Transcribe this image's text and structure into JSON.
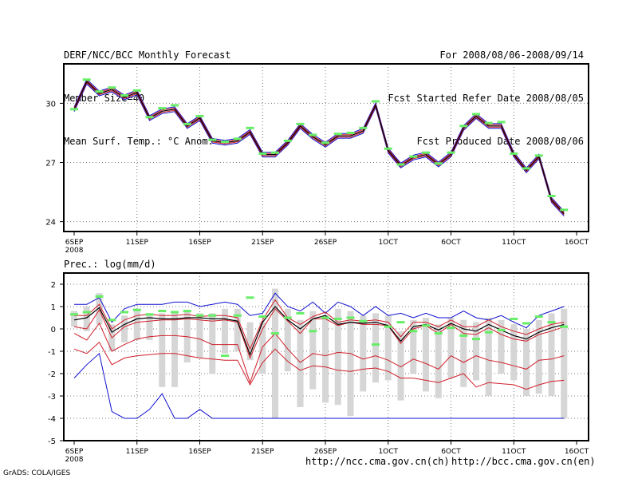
{
  "header": {
    "left": [
      "DERF/NCC/BCC Monthly Forecast",
      "Member Size=40",
      "Mean Surf. Temp.: °C Anom."
    ],
    "right": [
      "For 2008/08/06-2008/09/14",
      "Fcst Started Refer Date 2008/08/05",
      "Fcst Produced Date 2008/08/06"
    ]
  },
  "footer": {
    "url_ncc": "http://ncc.cma.gov.cn(ch)",
    "url_bcc": "http://bcc.cma.gov.cn(en)",
    "credit": "GrADS: COLA/IGES"
  },
  "colors": {
    "ensemble_mean": "#000000",
    "spread_red": "#d0202c",
    "range_blue": "#1010d0",
    "member_marker": "#66ee66",
    "box_fill": "#d6d6d6"
  },
  "chart_data": [
    {
      "type": "line",
      "title": "Mean Surf. Temp.: °C Anom.",
      "x_tick_labels": [
        "6SEP",
        "11SEP",
        "16SEP",
        "21SEP",
        "26SEP",
        "1OCT",
        "6OCT",
        "11OCT",
        "16OCT"
      ],
      "x_tick_sublabel": "2008",
      "x_day_range": [
        0,
        40
      ],
      "ylim": [
        23.5,
        32
      ],
      "y_ticks": [
        24,
        27,
        30
      ],
      "series": [
        {
          "name": "mean",
          "values": [
            29.7,
            31.1,
            30.5,
            30.7,
            30.3,
            30.55,
            29.25,
            29.6,
            29.7,
            28.85,
            29.25,
            28.1,
            28.0,
            28.1,
            28.55,
            27.4,
            27.4,
            28.0,
            28.85,
            28.3,
            27.9,
            28.35,
            28.35,
            28.6,
            29.9,
            27.6,
            26.85,
            27.25,
            27.4,
            26.9,
            27.4,
            28.75,
            29.35,
            28.85,
            28.85,
            27.4,
            26.6,
            27.3,
            25.1,
            24.4
          ]
        },
        {
          "name": "member-marks",
          "values": [
            29.7,
            31.2,
            30.6,
            30.8,
            30.4,
            30.65,
            29.3,
            29.75,
            29.9,
            28.95,
            29.35,
            28.15,
            28.05,
            28.2,
            28.75,
            27.45,
            27.5,
            28.1,
            28.95,
            28.4,
            28.0,
            28.45,
            28.5,
            28.75,
            30.1,
            27.7,
            26.9,
            27.3,
            27.5,
            26.95,
            27.5,
            28.85,
            29.45,
            29.0,
            29.05,
            27.45,
            26.7,
            27.35,
            25.3,
            24.6
          ]
        }
      ]
    },
    {
      "type": "box",
      "title": "Prec.: log(mm/d)",
      "x_tick_labels": [
        "6SEP",
        "11SEP",
        "16SEP",
        "21SEP",
        "26SEP",
        "1OCT",
        "6OCT",
        "11OCT",
        "16OCT"
      ],
      "x_tick_sublabel": "2008",
      "x_day_range": [
        0,
        40
      ],
      "ylim": [
        -5,
        2.5
      ],
      "y_ticks": [
        -5,
        -4,
        -3,
        -2,
        -1,
        0,
        1,
        2
      ],
      "series": [
        {
          "name": "max",
          "values": [
            1.1,
            1.1,
            1.4,
            0.3,
            0.9,
            1.1,
            1.1,
            1.1,
            1.2,
            1.2,
            1.0,
            1.1,
            1.2,
            1.1,
            0.6,
            0.7,
            1.6,
            1.0,
            0.8,
            1.2,
            0.7,
            1.2,
            1.0,
            0.6,
            1.0,
            0.6,
            0.7,
            0.5,
            0.7,
            0.5,
            0.5,
            0.8,
            0.5,
            0.4,
            0.6,
            0.3,
            0.05,
            0.6,
            0.8,
            1.0
          ]
        },
        {
          "name": "upper",
          "values": [
            0.6,
            0.6,
            1.1,
            0.0,
            0.4,
            0.6,
            0.65,
            0.6,
            0.6,
            0.65,
            0.55,
            0.6,
            0.6,
            0.5,
            -0.9,
            0.4,
            1.3,
            0.5,
            0.2,
            0.55,
            0.75,
            0.3,
            0.4,
            0.35,
            0.4,
            0.3,
            -0.35,
            0.3,
            0.3,
            0.1,
            0.4,
            0.1,
            0.1,
            0.4,
            0.1,
            -0.1,
            -0.25,
            0.0,
            0.2,
            0.3
          ]
        },
        {
          "name": "mean",
          "values": [
            0.4,
            0.5,
            0.95,
            -0.15,
            0.2,
            0.45,
            0.5,
            0.45,
            0.45,
            0.5,
            0.5,
            0.45,
            0.45,
            0.35,
            -1.15,
            0.3,
            1.0,
            0.4,
            0.0,
            0.45,
            0.6,
            0.2,
            0.3,
            0.25,
            0.3,
            0.15,
            -0.55,
            0.1,
            0.2,
            -0.05,
            0.25,
            0.0,
            -0.1,
            0.2,
            -0.05,
            -0.3,
            -0.45,
            -0.15,
            0.05,
            0.2
          ]
        },
        {
          "name": "lower",
          "values": [
            0.1,
            0.0,
            0.85,
            -0.4,
            0.1,
            0.3,
            0.35,
            0.4,
            0.4,
            0.45,
            0.4,
            0.35,
            0.4,
            0.3,
            -1.3,
            0.0,
            0.9,
            0.35,
            -0.2,
            0.45,
            0.45,
            0.15,
            0.3,
            0.2,
            0.2,
            0.15,
            -0.65,
            0.0,
            0.15,
            -0.2,
            0.2,
            -0.2,
            -0.25,
            0.05,
            -0.25,
            -0.45,
            -0.55,
            -0.25,
            -0.1,
            0.1
          ]
        },
        {
          "name": "low2",
          "values": [
            -0.2,
            -0.5,
            0.25,
            -1.0,
            -0.7,
            -0.45,
            -0.35,
            -0.3,
            -0.3,
            -0.35,
            -0.45,
            -0.7,
            -0.7,
            -0.7,
            -2.4,
            -0.8,
            -0.2,
            -0.9,
            -1.5,
            -1.1,
            -1.2,
            -1.05,
            -1.1,
            -1.35,
            -1.2,
            -1.4,
            -1.7,
            -1.35,
            -1.55,
            -1.8,
            -1.2,
            -1.5,
            -1.2,
            -1.4,
            -1.5,
            -1.65,
            -1.8,
            -1.4,
            -1.35,
            -1.2
          ]
        },
        {
          "name": "low3",
          "values": [
            -0.9,
            -1.1,
            -0.6,
            -1.6,
            -1.3,
            -1.2,
            -1.15,
            -1.1,
            -1.1,
            -1.2,
            -1.3,
            -1.35,
            -1.4,
            -1.4,
            -2.5,
            -1.5,
            -0.9,
            -1.45,
            -1.85,
            -1.65,
            -1.7,
            -1.85,
            -1.9,
            -1.8,
            -1.75,
            -1.9,
            -2.2,
            -2.2,
            -2.3,
            -2.4,
            -2.2,
            -2.0,
            -2.6,
            -2.4,
            -2.45,
            -2.5,
            -2.7,
            -2.5,
            -2.35,
            -2.3
          ]
        },
        {
          "name": "min",
          "values": [
            -2.2,
            -1.6,
            -1.1,
            -3.7,
            -4.0,
            -4.0,
            -3.6,
            -2.9,
            -4.0,
            -4.0,
            -3.6,
            -4.0,
            -4.0,
            -4.0,
            -4.0,
            -4.0,
            -4.0,
            -4.0,
            -4.0,
            -4.0,
            -4.0,
            -4.0,
            -4.0,
            -4.0,
            -4.0,
            -4.0,
            -4.0,
            -4.0,
            -4.0,
            -4.0,
            -4.0,
            -4.0,
            -4.0,
            -4.0,
            -4.0,
            -4.0,
            -4.0,
            -4.0,
            -4.0,
            -4.0
          ]
        },
        {
          "name": "box-top",
          "values": [
            0.8,
            1.0,
            1.6,
            0.2,
            0.6,
            0.8,
            0.7,
            0.7,
            0.8,
            0.8,
            0.7,
            0.7,
            0.9,
            0.9,
            0.3,
            0.3,
            1.8,
            0.9,
            0.4,
            0.8,
            0.6,
            0.9,
            0.8,
            0.6,
            0.7,
            0.6,
            -0.1,
            0.4,
            0.5,
            0.2,
            0.5,
            0.4,
            0.3,
            0.5,
            0.4,
            0.2,
            0.0,
            0.4,
            0.7,
            0.9
          ]
        },
        {
          "name": "box-bottom",
          "values": [
            0.1,
            -0.1,
            0.2,
            -1.0,
            -0.6,
            -0.5,
            -0.5,
            -2.6,
            -2.6,
            -1.5,
            -1.3,
            -2.0,
            -1.1,
            -1.0,
            -1.4,
            -2.0,
            -4.0,
            -1.9,
            -3.5,
            -2.7,
            -3.3,
            -3.4,
            -3.9,
            -2.8,
            -2.4,
            -2.3,
            -3.2,
            -2.0,
            -2.8,
            -3.1,
            -2.2,
            -2.6,
            -2.3,
            -3.0,
            -2.0,
            -2.3,
            -3.0,
            -2.9,
            -3.0,
            -4.0
          ]
        },
        {
          "name": "member-marks",
          "values": [
            0.65,
            0.75,
            1.45,
            0.4,
            0.75,
            0.85,
            0.65,
            0.8,
            0.75,
            0.8,
            0.6,
            0.6,
            -1.2,
            0.6,
            1.4,
            0.55,
            -0.2,
            0.5,
            0.7,
            -0.1,
            0.5,
            0.45,
            0.5,
            0.35,
            -0.7,
            0.1,
            0.3,
            -0.1,
            0.15,
            -0.2,
            0.05,
            -0.3,
            -0.45,
            -0.15,
            -0.05,
            0.45,
            0.25,
            0.55,
            0.3,
            0.1
          ]
        }
      ]
    }
  ]
}
